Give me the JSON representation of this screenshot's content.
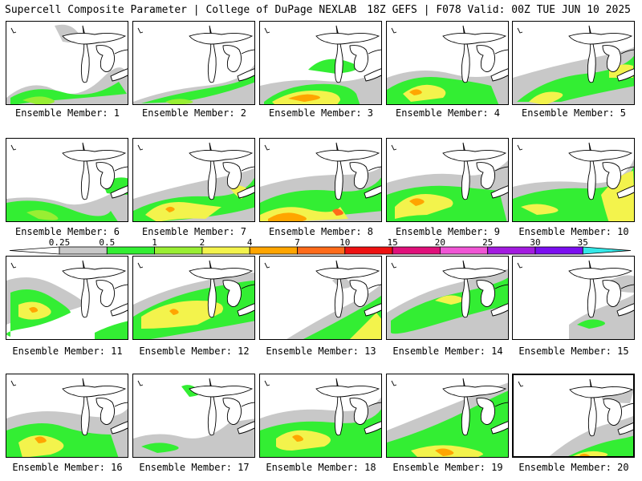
{
  "header": {
    "title_left": "Supercell Composite Parameter | College of DuPage NEXLAB",
    "title_right": "18Z GEFS | F078 Valid: 00Z TUE JUN 10 2025"
  },
  "colorbar": {
    "ticks": [
      "0.25",
      "0.5",
      "1",
      "2",
      "4",
      "7",
      "10",
      "15",
      "20",
      "25",
      "30",
      "35"
    ],
    "colors": [
      "#c8c8c8",
      "#33ee33",
      "#99ee33",
      "#f3f34c",
      "#ffa500",
      "#ff6b1a",
      "#ee1111",
      "#e0107a",
      "#f055d5",
      "#a31be0",
      "#7b0ef0",
      "#b085e0",
      "#33e8e8"
    ]
  },
  "panels": [
    {
      "label": "Ensemble Member: 1"
    },
    {
      "label": "Ensemble Member: 2"
    },
    {
      "label": "Ensemble Member: 3"
    },
    {
      "label": "Ensemble Member: 4"
    },
    {
      "label": "Ensemble Member: 5"
    },
    {
      "label": "Ensemble Member: 6"
    },
    {
      "label": "Ensemble Member: 7"
    },
    {
      "label": "Ensemble Member: 8"
    },
    {
      "label": "Ensemble Member: 9"
    },
    {
      "label": "Ensemble Member: 10"
    },
    {
      "label": "Ensemble Member: 11"
    },
    {
      "label": "Ensemble Member: 12"
    },
    {
      "label": "Ensemble Member: 13"
    },
    {
      "label": "Ensemble Member: 14"
    },
    {
      "label": "Ensemble Member: 15"
    },
    {
      "label": "Ensemble Member: 16"
    },
    {
      "label": "Ensemble Member: 17"
    },
    {
      "label": "Ensemble Member: 18"
    },
    {
      "label": "Ensemble Member: 19"
    },
    {
      "label": "Ensemble Member: 20"
    }
  ]
}
